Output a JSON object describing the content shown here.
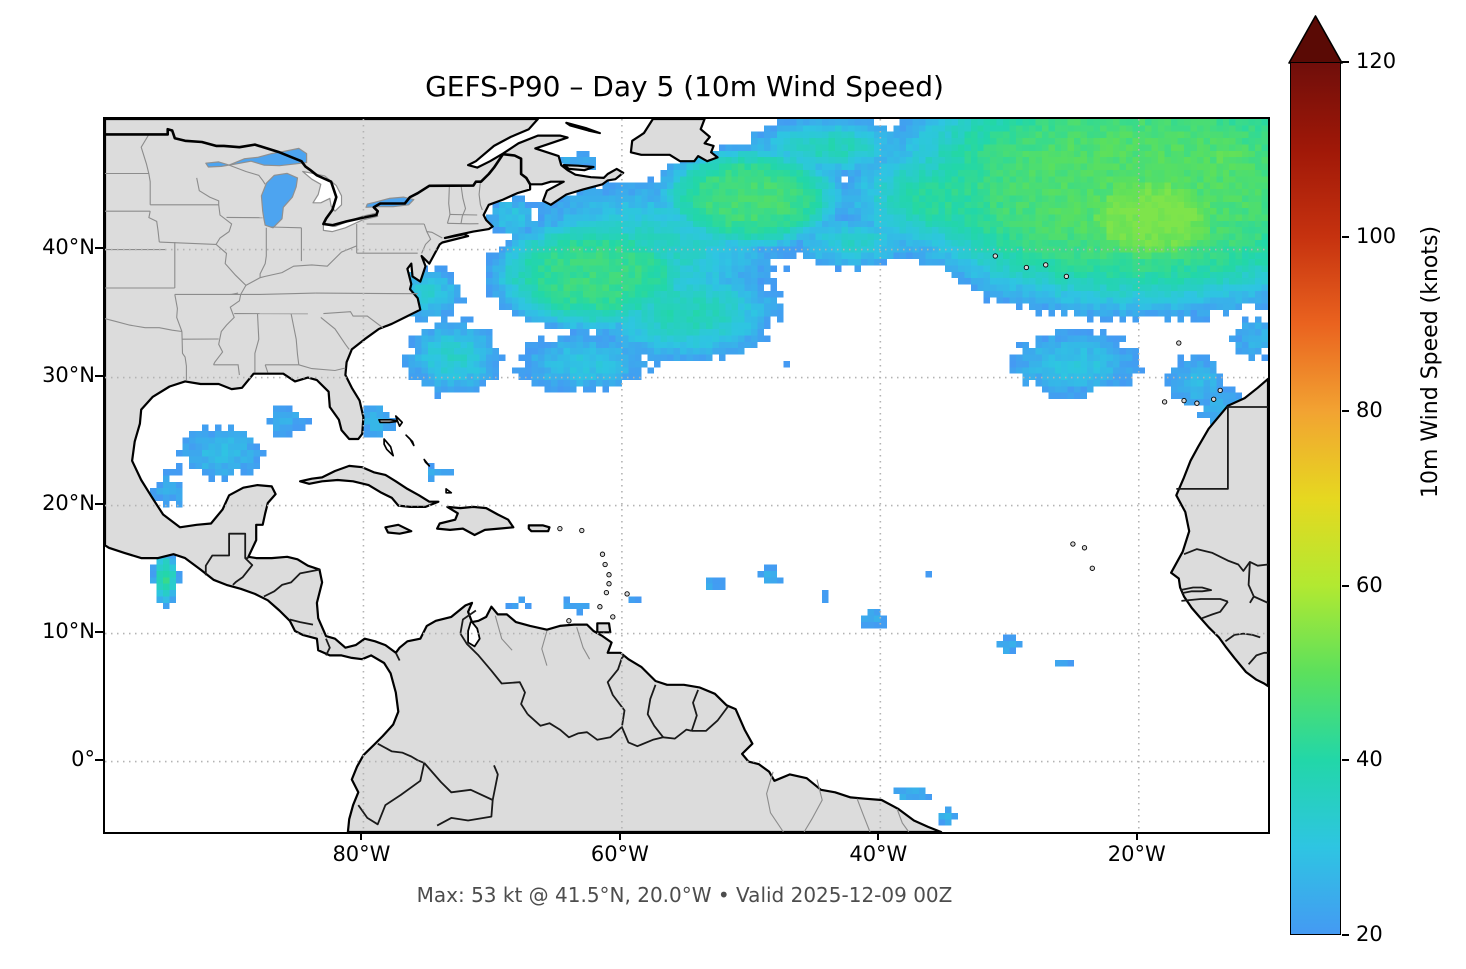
{
  "title": "GEFS-P90 – Day 5 (10m Wind Speed)",
  "subtitle": "Max: 53 kt @ 41.5°N, 20.0°W • Valid 2025-12-09 00Z",
  "axes": {
    "y_ticks": [
      {
        "label": "40°N",
        "lat": 40
      },
      {
        "label": "30°N",
        "lat": 30
      },
      {
        "label": "20°N",
        "lat": 20
      },
      {
        "label": "10°N",
        "lat": 10
      },
      {
        "label": "0°",
        "lat": 0
      }
    ],
    "x_ticks": [
      {
        "label": "80°W",
        "lon": -80
      },
      {
        "label": "60°W",
        "lon": -60
      },
      {
        "label": "40°W",
        "lon": -40
      },
      {
        "label": "20°W",
        "lon": -20
      }
    ]
  },
  "colorbar": {
    "label": "10m Wind Speed (knots)",
    "min": 20,
    "max": 120,
    "ticks": [
      20,
      40,
      60,
      80,
      100,
      120
    ],
    "over_color": "#5a0a05",
    "stops": [
      [
        20,
        [
          68,
          154,
          243
        ]
      ],
      [
        30,
        [
          46,
          197,
          226
        ]
      ],
      [
        40,
        [
          34,
          215,
          168
        ]
      ],
      [
        50,
        [
          92,
          224,
          92
        ]
      ],
      [
        60,
        [
          178,
          233,
          49
        ]
      ],
      [
        70,
        [
          230,
          216,
          32
        ]
      ],
      [
        80,
        [
          242,
          163,
          50
        ]
      ],
      [
        90,
        [
          234,
          99,
          31
        ]
      ],
      [
        100,
        [
          198,
          50,
          15
        ]
      ],
      [
        110,
        [
          160,
          24,
          8
        ]
      ],
      [
        120,
        [
          112,
          14,
          10
        ]
      ]
    ]
  },
  "map": {
    "extent": {
      "lon_min": -100,
      "lon_max": -10,
      "lat_min": -5.5,
      "lat_max": 50.2
    },
    "grid": {
      "lons": [
        -80,
        -60,
        -40,
        -20
      ],
      "lats": [
        0,
        10,
        20,
        30,
        40
      ]
    },
    "colors": {
      "land": "#dcdcdc",
      "coast": "#000000",
      "state": "#8c8c8c",
      "border": "#1a1a1a",
      "grid": "#b3b3b3",
      "lake_wind": "#4da4f0",
      "island_fill": "#ffffff"
    },
    "wind_field": {
      "units": "knots",
      "cell_deg": 0.5,
      "threshold": 20,
      "noise_amp": 5,
      "max_value": 53,
      "max_location": {
        "lat": 41.5,
        "lon": -20
      },
      "blobs": [
        [
          -20,
          45,
          48,
          22,
          11,
          2
        ],
        [
          -19,
          42.5,
          54,
          8,
          5,
          2
        ],
        [
          -13,
          47,
          50,
          6,
          5,
          1
        ],
        [
          -35,
          44,
          42,
          10,
          6,
          1
        ],
        [
          -44,
          48,
          38,
          8,
          3,
          1
        ],
        [
          -50,
          44,
          46,
          8,
          4.5,
          2
        ],
        [
          -58,
          40,
          36,
          14,
          7,
          1
        ],
        [
          -62,
          38,
          44,
          9,
          5,
          2
        ],
        [
          -42,
          40.5,
          34,
          7,
          3,
          1
        ],
        [
          -73,
          31.5,
          34,
          5,
          4,
          1
        ],
        [
          -75,
          36.5,
          32,
          4,
          3,
          1
        ],
        [
          -68.5,
          42.5,
          30,
          3,
          2.5,
          1
        ],
        [
          -55,
          35,
          38,
          10,
          5,
          1
        ],
        [
          -63,
          31,
          30,
          8,
          3.5,
          1
        ],
        [
          -45,
          31,
          26,
          8,
          4,
          1
        ],
        [
          -25,
          31,
          30,
          8,
          4,
          1
        ],
        [
          -15.5,
          29.5,
          27,
          4.5,
          3.5,
          1
        ],
        [
          -13.5,
          27.5,
          26,
          3.5,
          3,
          1
        ],
        [
          -11,
          33,
          26,
          3.5,
          3,
          1
        ],
        [
          -79,
          26.5,
          26,
          2.5,
          2.5,
          1
        ],
        [
          -74.5,
          22.5,
          23,
          3,
          1.5,
          1
        ],
        [
          -91,
          24,
          28,
          5.5,
          3.5,
          1
        ],
        [
          -95,
          21,
          24,
          3,
          3,
          1
        ],
        [
          -86,
          26.5,
          24,
          3.5,
          2.5,
          1
        ],
        [
          -95.3,
          14.2,
          42,
          1.2,
          2.6,
          1
        ],
        [
          -86,
          45.8,
          24,
          4.5,
          2,
          1
        ],
        [
          -63.5,
          46.8,
          25,
          3,
          1.5,
          1
        ],
        [
          -53,
          13.5,
          23,
          2.3,
          1.3,
          1
        ],
        [
          -48.5,
          14.3,
          24,
          2,
          1.4,
          1
        ],
        [
          -44.5,
          12.8,
          23,
          1.9,
          1.2,
          1
        ],
        [
          -40.5,
          11,
          24,
          2.3,
          1.6,
          1
        ],
        [
          -36.5,
          14.5,
          22,
          1.6,
          1,
          1
        ],
        [
          -30,
          8.8,
          24,
          2.3,
          1.5,
          1
        ],
        [
          -26,
          7.5,
          22,
          1.6,
          1,
          1
        ],
        [
          -68,
          12.2,
          22,
          2.5,
          1,
          1
        ],
        [
          -63.5,
          12,
          23,
          2.5,
          1.2,
          1
        ],
        [
          -71.5,
          12.8,
          21,
          1.5,
          0.8,
          1
        ],
        [
          -59,
          12.5,
          21,
          1.5,
          1,
          1
        ],
        [
          -37.5,
          -2.8,
          26,
          3,
          1.1,
          1
        ],
        [
          -35,
          -4.6,
          25,
          1.8,
          1.3,
          1
        ]
      ],
      "holes": [
        [
          -40.5,
          32.5,
          -26,
          5.5,
          3.5,
          1
        ],
        [
          -37,
          35.5,
          -10,
          3,
          2.5,
          1
        ],
        [
          -44,
          28.5,
          -10,
          4,
          2,
          1
        ]
      ]
    }
  }
}
